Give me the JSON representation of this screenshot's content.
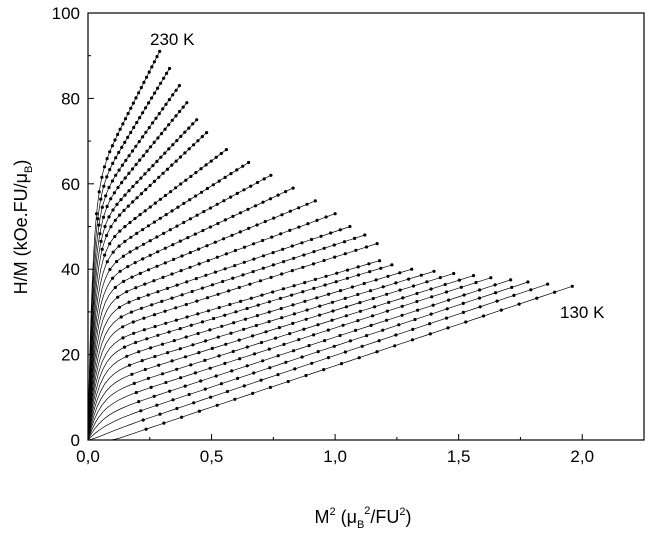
{
  "chart_data": {
    "type": "scatter",
    "title": "",
    "xlabel": {
      "main": "M",
      "sup1": "2",
      "open": " (μ",
      "sub": "B",
      "sup2": "2",
      "mid": "/FU",
      "sup3": "2",
      "close": ")"
    },
    "ylabel": {
      "main": "H/M (kOe.FU/μ",
      "sub": "B",
      "close": ")"
    },
    "xlim": [
      0.0,
      2.25
    ],
    "ylim": [
      0,
      100
    ],
    "x_ticks": [
      0.0,
      0.5,
      1.0,
      1.5,
      2.0
    ],
    "x_tick_labels": [
      "0,0",
      "0,5",
      "1,0",
      "1,5",
      "2,0"
    ],
    "y_ticks": [
      0,
      20,
      40,
      60,
      80,
      100
    ],
    "y_tick_labels": [
      "0",
      "20",
      "40",
      "60",
      "80",
      "100"
    ],
    "grid": false,
    "legend": "none",
    "marker_color": "#000000",
    "line_color": "#000000",
    "annotations": [
      {
        "text": "230 K",
        "x": 0.2,
        "y": 92
      },
      {
        "text": "130 K",
        "x": 1.98,
        "y": 37
      }
    ],
    "series_endpoints_note_values": {
      "count": 26,
      "hottest_top": [
        0.29,
        91
      ],
      "coldest_top": [
        1.96,
        36
      ],
      "top_envelope": [
        [
          0.29,
          91
        ],
        [
          0.33,
          87
        ],
        [
          0.37,
          83
        ],
        [
          0.4,
          79
        ],
        [
          0.44,
          75
        ],
        [
          0.48,
          72
        ],
        [
          0.56,
          68
        ],
        [
          0.65,
          65
        ],
        [
          0.74,
          62
        ],
        [
          0.83,
          59
        ],
        [
          0.92,
          56
        ],
        [
          1.0,
          53
        ],
        [
          1.06,
          50
        ],
        [
          1.12,
          48
        ],
        [
          1.17,
          46
        ],
        [
          1.18,
          42
        ],
        [
          1.23,
          41
        ],
        [
          1.31,
          40
        ],
        [
          1.4,
          39.5
        ],
        [
          1.48,
          39
        ],
        [
          1.56,
          38.5
        ],
        [
          1.63,
          38
        ],
        [
          1.71,
          37.5
        ],
        [
          1.78,
          37
        ],
        [
          1.86,
          36.5
        ],
        [
          1.96,
          36
        ]
      ]
    }
  }
}
